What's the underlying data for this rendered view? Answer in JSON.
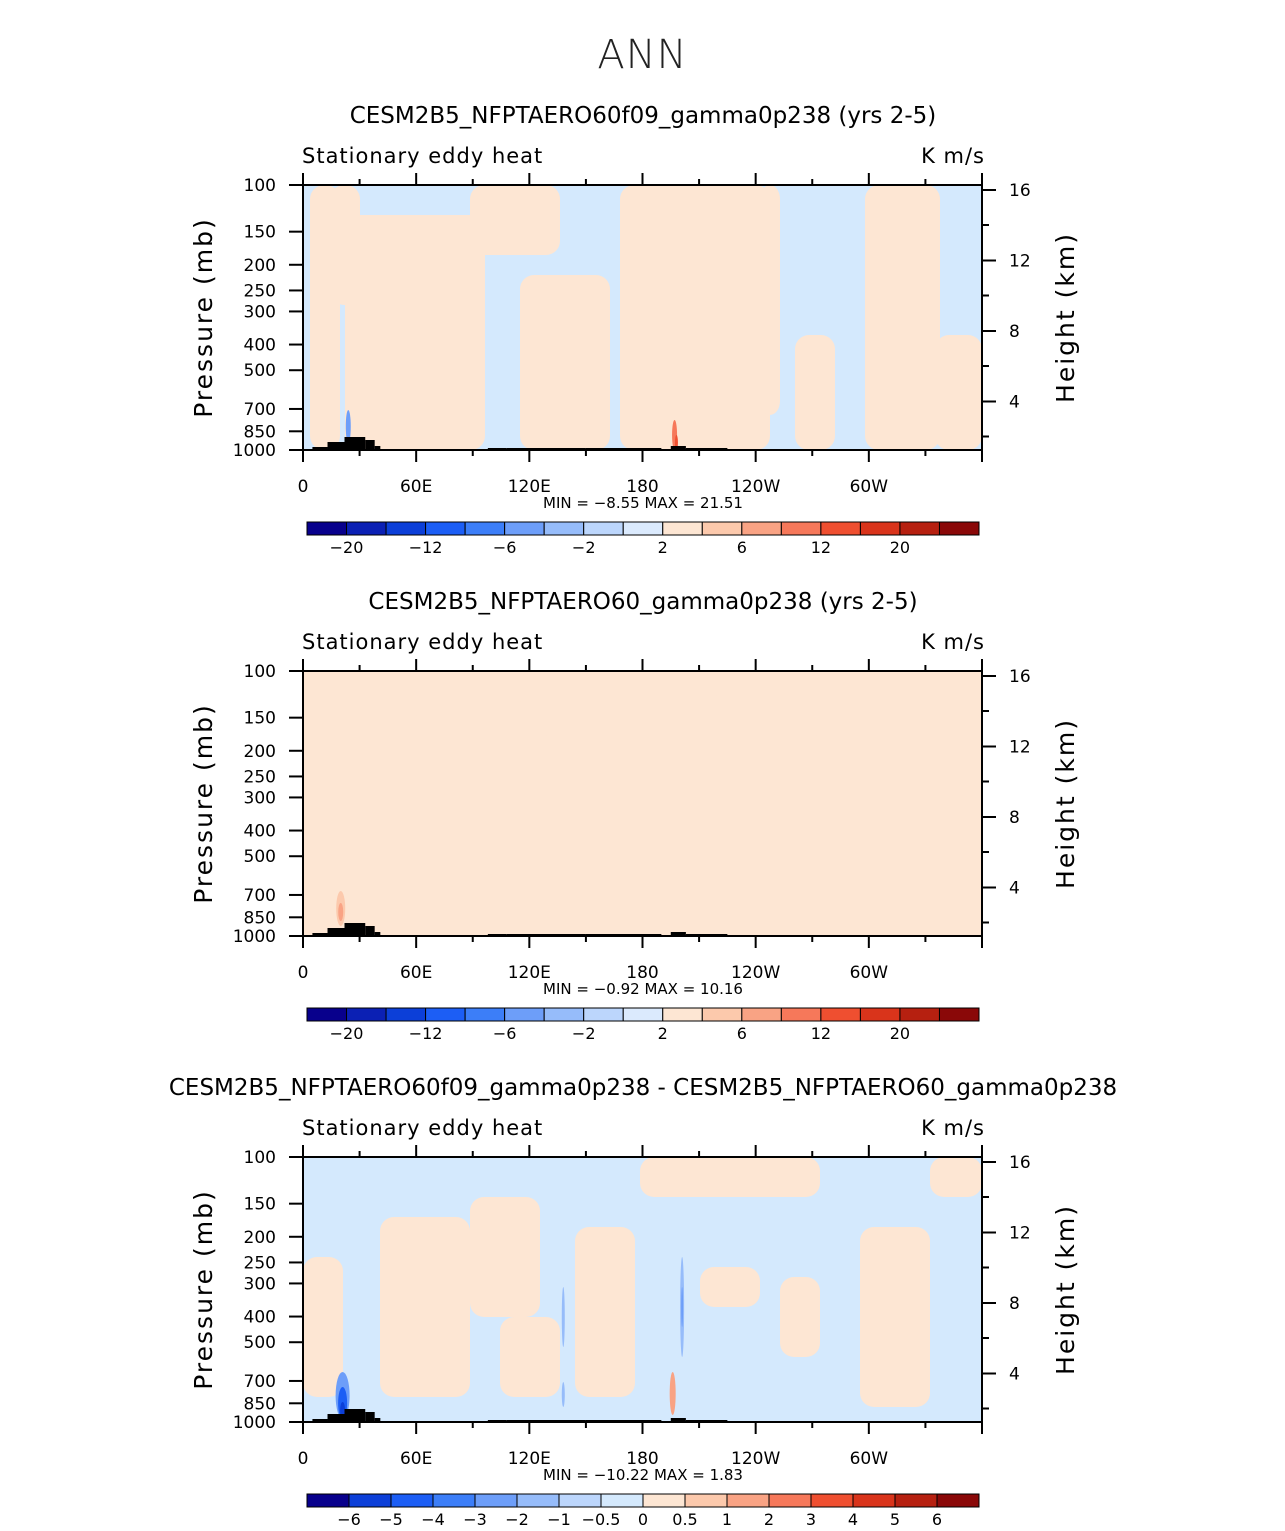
{
  "title": "ANN",
  "colors": {
    "blue_light": "#d4e9fd",
    "peach_light": "#fde6d3",
    "mountain": "#000000"
  },
  "chart_data": [
    {
      "type": "heatmap",
      "title": "CESM2B5_NFPTAERO60f09_gamma0p238 (yrs 2-5)",
      "left_label": "Stationary eddy heat",
      "right_label": "K m/s",
      "ylabel": "Pressure (mb)",
      "ylabel_right": "Height (km)",
      "xticks": [
        "0",
        "60E",
        "120E",
        "180",
        "120W",
        "60W"
      ],
      "yticks": [
        "100",
        "150",
        "200",
        "250",
        "300",
        "400",
        "500",
        "700",
        "850",
        "1000"
      ],
      "yticks_right": [
        "16",
        "12",
        "8",
        "4"
      ],
      "stats": "MIN =   −8.55   MAX =    21.51",
      "colorbar_labels": [
        "−20",
        "−12",
        "−6",
        "−2",
        "2",
        "6",
        "12",
        "20"
      ]
    },
    {
      "type": "heatmap",
      "title": "CESM2B5_NFPTAERO60_gamma0p238 (yrs 2-5)",
      "left_label": "Stationary eddy heat",
      "right_label": "K m/s",
      "ylabel": "Pressure (mb)",
      "ylabel_right": "Height (km)",
      "xticks": [
        "0",
        "60E",
        "120E",
        "180",
        "120W",
        "60W"
      ],
      "yticks": [
        "100",
        "150",
        "200",
        "250",
        "300",
        "400",
        "500",
        "700",
        "850",
        "1000"
      ],
      "yticks_right": [
        "16",
        "12",
        "8",
        "4"
      ],
      "stats": "MIN =   −0.92   MAX =    10.16",
      "colorbar_labels": [
        "−20",
        "−12",
        "−6",
        "−2",
        "2",
        "6",
        "12",
        "20"
      ]
    },
    {
      "type": "heatmap",
      "title": "CESM2B5_NFPTAERO60f09_gamma0p238 - CESM2B5_NFPTAERO60_gamma0p238",
      "left_label": "Stationary eddy heat",
      "right_label": "K m/s",
      "ylabel": "Pressure (mb)",
      "ylabel_right": "Height (km)",
      "xticks": [
        "0",
        "60E",
        "120E",
        "180",
        "120W",
        "60W"
      ],
      "yticks": [
        "100",
        "150",
        "200",
        "250",
        "300",
        "400",
        "500",
        "700",
        "850",
        "1000"
      ],
      "yticks_right": [
        "16",
        "12",
        "8",
        "4"
      ],
      "stats": "MIN =  −10.22   MAX =     1.83",
      "colorbar_labels": [
        "−6",
        "−5",
        "−4",
        "−3",
        "−2",
        "−1",
        "−0.5",
        "0",
        "0.5",
        "1",
        "2",
        "3",
        "4",
        "5",
        "6"
      ]
    }
  ]
}
